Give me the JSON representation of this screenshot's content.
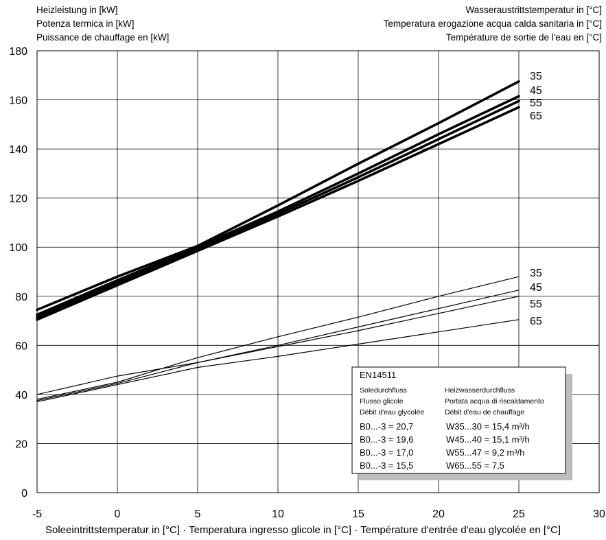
{
  "header": {
    "ylabel_lines": [
      "Heizleistung in [kW]",
      "Potenza termica in [kW]",
      "Puissance de chauffage en [kW]"
    ],
    "legend_title_lines": [
      "Wasseraustrittstemperatur in [°C]",
      "Temperatura erogazione acqua calda sanitaria in [°C]",
      "Température de sortie de l'eau en [°C]"
    ]
  },
  "chart_data": {
    "type": "line",
    "xlabel": "Soleeintrittstemperatur in [°C] · Temperatura ingresso glicole in [°C] · Température d'entrée d'eau glycolée en [°C]",
    "ylabel": "Heizleistung in [kW] / Potenza termica in [kW] / Puissance de chauffage en [kW]",
    "xlim": [
      -5,
      30
    ],
    "ylim": [
      0,
      180
    ],
    "xticks": [
      -5,
      0,
      5,
      10,
      15,
      20,
      25,
      30
    ],
    "yticks": [
      0,
      20,
      40,
      60,
      80,
      100,
      120,
      140,
      160,
      180
    ],
    "grid": true,
    "groups": [
      {
        "weight": "bold",
        "series": [
          {
            "name": "35",
            "x": [
              -5,
              0,
              5,
              10,
              15,
              20,
              25
            ],
            "y": [
              74.5,
              88,
              100.5,
              117,
              134,
              150.5,
              167.5
            ]
          },
          {
            "name": "45",
            "x": [
              -5,
              0,
              5,
              10,
              15,
              20,
              25
            ],
            "y": [
              72.5,
              86.5,
              100,
              114.5,
              130,
              146,
              161.5
            ]
          },
          {
            "name": "55",
            "x": [
              -5,
              0,
              5,
              10,
              15,
              20,
              25
            ],
            "y": [
              71.5,
              85.5,
              99,
              113.5,
              128.5,
              144,
              159.5
            ]
          },
          {
            "name": "65",
            "x": [
              -5,
              0,
              5,
              10,
              15,
              20,
              25
            ],
            "y": [
              70.5,
              84.5,
              98.5,
              112.5,
              127,
              142,
              157
            ]
          }
        ]
      },
      {
        "weight": "thin",
        "series": [
          {
            "name": "35",
            "x": [
              -5,
              0,
              5,
              10,
              15,
              20,
              25
            ],
            "y": [
              38,
              45,
              55,
              63.5,
              71.5,
              80,
              88
            ]
          },
          {
            "name": "45",
            "x": [
              -5,
              0,
              5,
              10,
              15,
              20,
              25
            ],
            "y": [
              37.5,
              44.5,
              53,
              60,
              67.5,
              75,
              82.5
            ]
          },
          {
            "name": "55",
            "x": [
              -5,
              0,
              5,
              10,
              15,
              20,
              25
            ],
            "y": [
              40,
              47.5,
              53,
              59.5,
              66,
              73,
              80
            ]
          },
          {
            "name": "65",
            "x": [
              -5,
              0,
              5,
              10,
              15,
              20,
              25
            ],
            "y": [
              37,
              44,
              51,
              55.5,
              60.5,
              65.5,
              70.5
            ]
          }
        ]
      }
    ],
    "info_box": {
      "title": "EN14511",
      "left_header_lines": [
        "Soledurchfluss",
        "Flusso glicole",
        "Débit d'eau glycolée"
      ],
      "right_header_lines": [
        "Heizwasserdurchfluss",
        "Portata acqua di riscaldamento",
        "Débit d'eau de chauffage"
      ],
      "rows": [
        {
          "left": "B0...-3 = 20,7",
          "right": "W35...30 = 15,4  m³/h"
        },
        {
          "left": "B0...-3 = 19,6",
          "right": "W45...40 = 15,1  m³/h"
        },
        {
          "left": "B0...-3 = 17,0",
          "right": "W55...47 =  9,2  m³/h"
        },
        {
          "left": "B0...-3 = 15,5",
          "right": "W65...55 =  7,5"
        }
      ]
    }
  }
}
